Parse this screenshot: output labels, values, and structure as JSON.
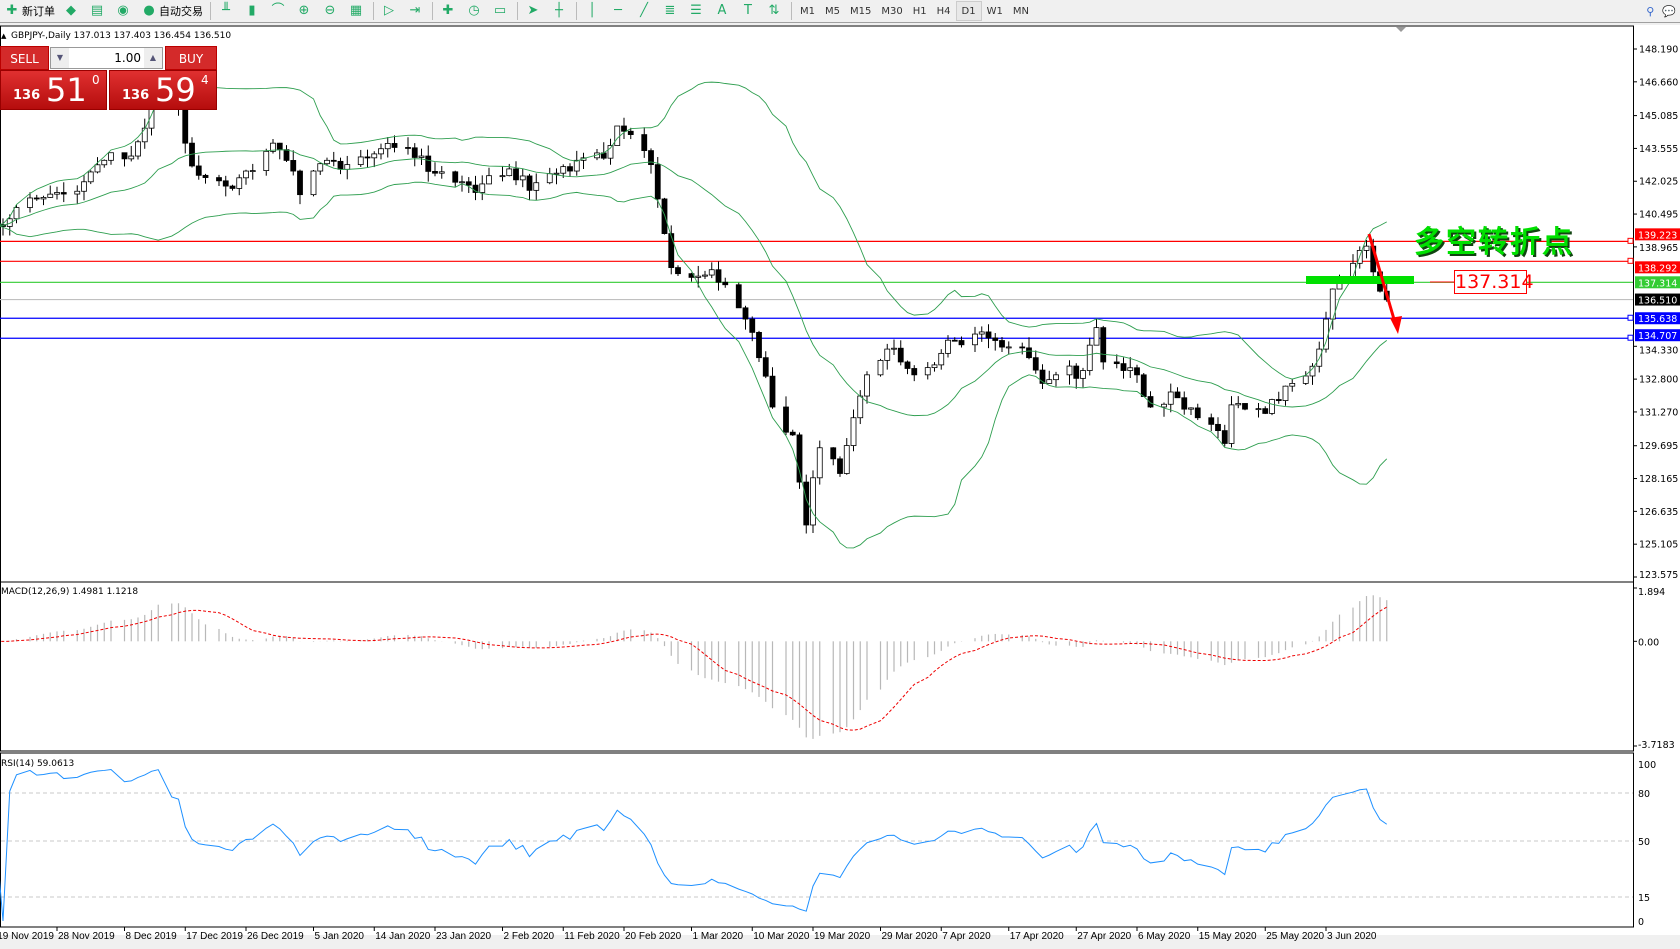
{
  "toolbar": {
    "new_order": "新订单",
    "auto_trading": "自动交易",
    "icons": [
      "new-order-icon",
      "market-watch-icon",
      "navigator-icon",
      "signals-icon",
      "auto-trading-icon",
      "bar-chart-icon",
      "candlestick-icon",
      "line-chart-icon",
      "zoom-in-icon",
      "zoom-out-icon",
      "tile-windows-icon",
      "auto-scroll-icon",
      "chart-shift-icon",
      "indicators-icon",
      "periods-icon",
      "templates-icon",
      "cursor-icon",
      "crosshair-icon",
      "vertical-line-icon",
      "horizontal-line-icon",
      "trendline-icon",
      "fibonacci-icon",
      "fibo-fan-icon",
      "text-icon",
      "text-label-icon",
      "arrows-icon"
    ],
    "timeframes": [
      "M1",
      "M5",
      "M15",
      "M30",
      "H1",
      "H4",
      "D1",
      "W1",
      "MN"
    ],
    "active_timeframe": "D1"
  },
  "chart": {
    "title": "GBPJPY-,Daily",
    "ohlc": "137.013 137.403 136.454 136.510",
    "price_ticks": [
      "148.190",
      "146.660",
      "145.085",
      "143.555",
      "142.025",
      "140.495",
      "138.965",
      "134.330",
      "132.800",
      "131.270",
      "129.695",
      "128.165",
      "126.635",
      "125.105",
      "123.575"
    ],
    "price_range": [
      123.575,
      148.19
    ],
    "lines": [
      {
        "price": 139.223,
        "label": "139.223",
        "color": "#ff0000"
      },
      {
        "price": 138.292,
        "label": "138.292",
        "color": "#ff0000"
      },
      {
        "price": 137.314,
        "label": "137.314",
        "color": "#33cc33"
      },
      {
        "price": 136.51,
        "label": "136.510",
        "color": "#000000"
      },
      {
        "price": 135.638,
        "label": "135.638",
        "color": "#0000ff"
      },
      {
        "price": 134.707,
        "label": "134.707",
        "color": "#0000ff"
      }
    ],
    "annotation": "多空转折点",
    "annotation_price": "137.314",
    "dates": [
      [
        "2019-11-19",
        "19 Nov 2019"
      ],
      [
        "2019-11-28",
        "28 Nov 2019"
      ],
      [
        "2019-12-08",
        "8 Dec 2019"
      ],
      [
        "2019-12-17",
        "17 Dec 2019"
      ],
      [
        "2019-12-26",
        "26 Dec 2019"
      ],
      [
        "2020-01-05",
        "5 Jan 2020"
      ],
      [
        "2020-01-14",
        "14 Jan 2020"
      ],
      [
        "2020-01-23",
        "23 Jan 2020"
      ],
      [
        "2020-02-02",
        "2 Feb 2020"
      ],
      [
        "2020-02-11",
        "11 Feb 2020"
      ],
      [
        "2020-02-20",
        "20 Feb 2020"
      ],
      [
        "2020-03-01",
        "1 Mar 2020"
      ],
      [
        "2020-03-10",
        "10 Mar 2020"
      ],
      [
        "2020-03-19",
        "19 Mar 2020"
      ],
      [
        "2020-03-29",
        "29 Mar 2020"
      ],
      [
        "2020-04-07",
        "7 Apr 2020"
      ],
      [
        "2020-04-17",
        "17 Apr 2020"
      ],
      [
        "2020-04-27",
        "27 Apr 2020"
      ],
      [
        "2020-05-06",
        "6 May 2020"
      ],
      [
        "2020-05-15",
        "15 May 2020"
      ],
      [
        "2020-05-25",
        "25 May 2020"
      ],
      [
        "2020-06-03",
        "3 Jun 2020"
      ]
    ],
    "close_path": [
      [
        "2019-11-19",
        140.0
      ],
      [
        "2019-11-22",
        140.8
      ],
      [
        "2019-11-25",
        141.2
      ],
      [
        "2019-11-28",
        141.5
      ],
      [
        "2019-12-02",
        142.0
      ],
      [
        "2019-12-05",
        143.0
      ],
      [
        "2019-12-09",
        143.2
      ],
      [
        "2019-12-11",
        144.5
      ],
      [
        "2019-12-13",
        146.8
      ],
      [
        "2019-12-16",
        145.5
      ],
      [
        "2019-12-17",
        143.8
      ],
      [
        "2019-12-19",
        142.3
      ],
      [
        "2019-12-23",
        141.8
      ],
      [
        "2019-12-26",
        142.5
      ],
      [
        "2019-12-30",
        143.8
      ],
      [
        "2020-01-02",
        142.5
      ],
      [
        "2020-01-03",
        141.4
      ],
      [
        "2020-01-07",
        143.0
      ],
      [
        "2020-01-10",
        142.8
      ],
      [
        "2020-01-14",
        143.3
      ],
      [
        "2020-01-17",
        143.6
      ],
      [
        "2020-01-21",
        143.2
      ],
      [
        "2020-01-23",
        142.4
      ],
      [
        "2020-01-27",
        142.0
      ],
      [
        "2020-01-29",
        141.5
      ],
      [
        "2020-02-03",
        142.6
      ],
      [
        "2020-02-06",
        141.6
      ],
      [
        "2020-02-10",
        142.4
      ],
      [
        "2020-02-13",
        143.0
      ],
      [
        "2020-02-17",
        143.1
      ],
      [
        "2020-02-19",
        144.6
      ],
      [
        "2020-02-21",
        144.2
      ],
      [
        "2020-02-24",
        142.8
      ],
      [
        "2020-02-25",
        141.2
      ],
      [
        "2020-02-27",
        138.0
      ],
      [
        "2020-03-02",
        137.6
      ],
      [
        "2020-03-04",
        137.9
      ],
      [
        "2020-03-06",
        137.2
      ],
      [
        "2020-03-09",
        135.6
      ],
      [
        "2020-03-11",
        133.8
      ],
      [
        "2020-03-13",
        131.5
      ],
      [
        "2020-03-16",
        130.2
      ],
      [
        "2020-03-17",
        128.0
      ],
      [
        "2020-03-18",
        126.0
      ],
      [
        "2020-03-19",
        128.2
      ],
      [
        "2020-03-20",
        129.6
      ],
      [
        "2020-03-23",
        128.4
      ],
      [
        "2020-03-25",
        131.0
      ],
      [
        "2020-03-27",
        133.0
      ],
      [
        "2020-03-30",
        134.2
      ],
      [
        "2020-04-01",
        133.6
      ],
      [
        "2020-04-03",
        133.0
      ],
      [
        "2020-04-07",
        134.0
      ],
      [
        "2020-04-09",
        134.6
      ],
      [
        "2020-04-13",
        135.0
      ],
      [
        "2020-04-15",
        134.6
      ],
      [
        "2020-04-17",
        134.3
      ],
      [
        "2020-04-20",
        133.8
      ],
      [
        "2020-04-22",
        132.6
      ],
      [
        "2020-04-24",
        133.0
      ],
      [
        "2020-04-28",
        133.2
      ],
      [
        "2020-04-30",
        135.2
      ],
      [
        "2020-05-01",
        133.6
      ],
      [
        "2020-05-04",
        133.2
      ],
      [
        "2020-05-06",
        133.0
      ],
      [
        "2020-05-08",
        131.5
      ],
      [
        "2020-05-11",
        132.2
      ],
      [
        "2020-05-13",
        131.4
      ],
      [
        "2020-05-15",
        131.0
      ],
      [
        "2020-05-18",
        130.4
      ],
      [
        "2020-05-19",
        129.8
      ],
      [
        "2020-05-20",
        131.6
      ],
      [
        "2020-05-22",
        131.4
      ],
      [
        "2020-05-25",
        131.2
      ],
      [
        "2020-05-27",
        131.8
      ],
      [
        "2020-05-29",
        132.6
      ],
      [
        "2020-06-01",
        133.4
      ],
      [
        "2020-06-02",
        134.2
      ],
      [
        "2020-06-03",
        135.6
      ],
      [
        "2020-06-04",
        137.0
      ],
      [
        "2020-06-05",
        137.4
      ],
      [
        "2020-06-08",
        138.8
      ],
      [
        "2020-06-09",
        139.0
      ],
      [
        "2020-06-10",
        137.8
      ],
      [
        "2020-06-11",
        136.9
      ],
      [
        "2020-06-12",
        136.5
      ]
    ],
    "bands_color": "#2e9e4f"
  },
  "trade": {
    "sell": "SELL",
    "buy": "BUY",
    "volume": "1.00",
    "sell_small": "136",
    "sell_big": "51",
    "sell_tiny": "0",
    "buy_small": "136",
    "buy_big": "59",
    "buy_tiny": "4"
  },
  "macd": {
    "label": "MACD(12,26,9) 1.4981 1.1218",
    "ticks": [
      "1.894",
      "0.00",
      "-3.7183"
    ],
    "range": [
      -3.7183,
      1.894
    ]
  },
  "rsi": {
    "label": "RSI(14) 59.0613",
    "ticks": [
      "100",
      "80",
      "50",
      "15",
      "0"
    ],
    "levels": [
      80,
      50,
      15
    ]
  }
}
